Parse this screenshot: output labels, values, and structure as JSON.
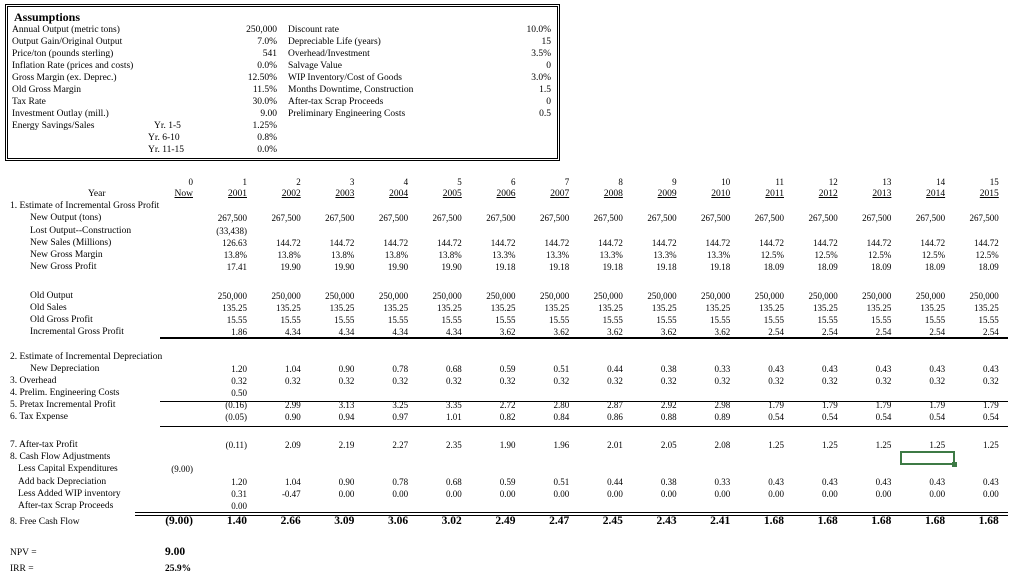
{
  "assumptions": {
    "title": "Assumptions",
    "left": [
      {
        "label": "Annual Output (metric tons)",
        "sub": "",
        "value": "250,000"
      },
      {
        "label": "Output Gain/Original Output",
        "sub": "",
        "value": "7.0%"
      },
      {
        "label": "Price/ton (pounds sterling)",
        "sub": "",
        "value": "541"
      },
      {
        "label": "Inflation Rate (prices and costs)",
        "sub": "",
        "value": "0.0%"
      },
      {
        "label": "Gross Margin (ex. Deprec.)",
        "sub": "",
        "value": "12.50%"
      },
      {
        "label": "Old Gross Margin",
        "sub": "",
        "value": "11.5%"
      },
      {
        "label": "Tax Rate",
        "sub": "",
        "value": "30.0%"
      },
      {
        "label": "Investment Outlay (mill.)",
        "sub": "",
        "value": "9.00"
      },
      {
        "label": "Energy Savings/Sales",
        "sub": "Yr. 1-5",
        "value": "1.25%"
      },
      {
        "label": "",
        "sub": "Yr. 6-10",
        "value": "0.8%"
      },
      {
        "label": "",
        "sub": "Yr. 11-15",
        "value": "0.0%"
      }
    ],
    "right": [
      {
        "label": "Discount rate",
        "value": "10.0%"
      },
      {
        "label": "Depreciable Life (years)",
        "value": "15"
      },
      {
        "label": "Overhead/Investment",
        "value": "3.5%"
      },
      {
        "label": "Salvage Value",
        "value": "0"
      },
      {
        "label": "WIP Inventory/Cost of Goods",
        "value": "3.0%"
      },
      {
        "label": "Months Downtime, Construction",
        "value": "1.5"
      },
      {
        "label": "After-tax Scrap Proceeds",
        "value": "0"
      },
      {
        "label": "Preliminary Engineering Costs",
        "value": "0.5"
      }
    ]
  },
  "table": {
    "period_numbers": [
      "0",
      "1",
      "2",
      "3",
      "4",
      "5",
      "6",
      "7",
      "8",
      "9",
      "10",
      "11",
      "12",
      "13",
      "14",
      "15"
    ],
    "year_label": "Year",
    "years": [
      "Now",
      "2001",
      "2002",
      "2003",
      "2004",
      "2005",
      "2006",
      "2007",
      "2008",
      "2009",
      "2010",
      "2011",
      "2012",
      "2013",
      "2014",
      "2015"
    ],
    "rows": [
      {
        "label": "1. Estimate of Incremental Gross Profit",
        "indent": 0,
        "values": []
      },
      {
        "label": "New Output (tons)",
        "indent": 1,
        "values": [
          "",
          "267,500",
          "267,500",
          "267,500",
          "267,500",
          "267,500",
          "267,500",
          "267,500",
          "267,500",
          "267,500",
          "267,500",
          "267,500",
          "267,500",
          "267,500",
          "267,500",
          "267,500"
        ]
      },
      {
        "label": "Lost Output--Construction",
        "indent": 1,
        "values": [
          "",
          "(33,438)"
        ]
      },
      {
        "label": "New Sales (Millions)",
        "indent": 1,
        "values": [
          "",
          "126.63",
          "144.72",
          "144.72",
          "144.72",
          "144.72",
          "144.72",
          "144.72",
          "144.72",
          "144.72",
          "144.72",
          "144.72",
          "144.72",
          "144.72",
          "144.72",
          "144.72"
        ]
      },
      {
        "label": "New Gross Margin",
        "indent": 1,
        "values": [
          "",
          "13.8%",
          "13.8%",
          "13.8%",
          "13.8%",
          "13.8%",
          "13.3%",
          "13.3%",
          "13.3%",
          "13.3%",
          "13.3%",
          "12.5%",
          "12.5%",
          "12.5%",
          "12.5%",
          "12.5%"
        ]
      },
      {
        "label": "New Gross Profit",
        "indent": 1,
        "values": [
          "",
          "17.41",
          "19.90",
          "19.90",
          "19.90",
          "19.90",
          "19.18",
          "19.18",
          "19.18",
          "19.18",
          "19.18",
          "18.09",
          "18.09",
          "18.09",
          "18.09",
          "18.09"
        ]
      },
      {
        "label": "Old Output",
        "indent": 1,
        "values": [
          "",
          "250,000",
          "250,000",
          "250,000",
          "250,000",
          "250,000",
          "250,000",
          "250,000",
          "250,000",
          "250,000",
          "250,000",
          "250,000",
          "250,000",
          "250,000",
          "250,000",
          "250,000"
        ]
      },
      {
        "label": "Old Sales",
        "indent": 1,
        "values": [
          "",
          "135.25",
          "135.25",
          "135.25",
          "135.25",
          "135.25",
          "135.25",
          "135.25",
          "135.25",
          "135.25",
          "135.25",
          "135.25",
          "135.25",
          "135.25",
          "135.25",
          "135.25"
        ]
      },
      {
        "label": "Old Gross Profit",
        "indent": 1,
        "values": [
          "",
          "15.55",
          "15.55",
          "15.55",
          "15.55",
          "15.55",
          "15.55",
          "15.55",
          "15.55",
          "15.55",
          "15.55",
          "15.55",
          "15.55",
          "15.55",
          "15.55",
          "15.55"
        ]
      },
      {
        "label": "Incremental Gross Profit",
        "indent": 1,
        "values": [
          "",
          "1.86",
          "4.34",
          "4.34",
          "4.34",
          "4.34",
          "3.62",
          "3.62",
          "3.62",
          "3.62",
          "3.62",
          "2.54",
          "2.54",
          "2.54",
          "2.54",
          "2.54"
        ]
      },
      {
        "label": "2. Estimate of Incremental Depreciation",
        "indent": 0,
        "values": []
      },
      {
        "label": "New Depreciation",
        "indent": 1,
        "values": [
          "",
          "1.20",
          "1.04",
          "0.90",
          "0.78",
          "0.68",
          "0.59",
          "0.51",
          "0.44",
          "0.38",
          "0.33",
          "0.43",
          "0.43",
          "0.43",
          "0.43",
          "0.43"
        ]
      },
      {
        "label": "3. Overhead",
        "indent": 0,
        "values": [
          "",
          "0.32",
          "0.32",
          "0.32",
          "0.32",
          "0.32",
          "0.32",
          "0.32",
          "0.32",
          "0.32",
          "0.32",
          "0.32",
          "0.32",
          "0.32",
          "0.32",
          "0.32"
        ]
      },
      {
        "label": "4. Prelim. Engineering Costs",
        "indent": 0,
        "values": [
          "",
          "0.50"
        ]
      },
      {
        "label": "5. Pretax Incremental Profit",
        "indent": 0,
        "values": [
          "",
          "(0.16)",
          "2.99",
          "3.13",
          "3.25",
          "3.35",
          "2.72",
          "2.80",
          "2.87",
          "2.92",
          "2.98",
          "1.79",
          "1.79",
          "1.79",
          "1.79",
          "1.79"
        ]
      },
      {
        "label": "6. Tax Expense",
        "indent": 0,
        "values": [
          "",
          "(0.05)",
          "0.90",
          "0.94",
          "0.97",
          "1.01",
          "0.82",
          "0.84",
          "0.86",
          "0.88",
          "0.89",
          "0.54",
          "0.54",
          "0.54",
          "0.54",
          "0.54"
        ]
      },
      {
        "label": "7. After-tax Profit",
        "indent": 0,
        "values": [
          "",
          "(0.11)",
          "2.09",
          "2.19",
          "2.27",
          "2.35",
          "1.90",
          "1.96",
          "2.01",
          "2.05",
          "2.08",
          "1.25",
          "1.25",
          "1.25",
          "1.25",
          "1.25"
        ]
      },
      {
        "label": "8. Cash Flow Adjustments",
        "indent": 0,
        "values": []
      },
      {
        "label": "Less Capital Expenditures",
        "indent": 2,
        "values": [
          "(9.00)"
        ]
      },
      {
        "label": "Add back Depreciation",
        "indent": 2,
        "values": [
          "",
          "1.20",
          "1.04",
          "0.90",
          "0.78",
          "0.68",
          "0.59",
          "0.51",
          "0.44",
          "0.38",
          "0.33",
          "0.43",
          "0.43",
          "0.43",
          "0.43",
          "0.43"
        ]
      },
      {
        "label": "Less Added WIP inventory",
        "indent": 2,
        "values": [
          "",
          "0.31",
          "-0.47",
          "0.00",
          "0.00",
          "0.00",
          "0.00",
          "0.00",
          "0.00",
          "0.00",
          "0.00",
          "0.00",
          "0.00",
          "0.00",
          "0.00",
          "0.00"
        ]
      },
      {
        "label": "After-tax Scrap Proceeds",
        "indent": 2,
        "values": [
          "",
          "0.00"
        ]
      },
      {
        "label": "8. Free Cash Flow",
        "indent": 0,
        "bold": true,
        "values": [
          "(9.00)",
          "1.40",
          "2.66",
          "3.09",
          "3.06",
          "3.02",
          "2.49",
          "2.47",
          "2.45",
          "2.43",
          "2.41",
          "1.68",
          "1.68",
          "1.68",
          "1.68",
          "1.68"
        ]
      }
    ],
    "npv": {
      "label": "NPV =",
      "value": "9.00"
    },
    "irr": {
      "label": "IRR =",
      "value": "25.9%"
    }
  }
}
